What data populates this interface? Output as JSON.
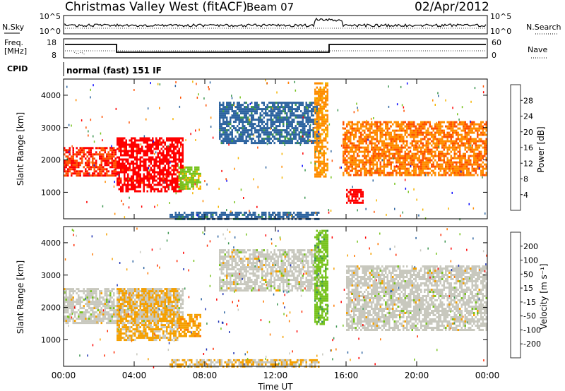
{
  "header": {
    "title": "Christmas Valley West (fitACF)",
    "beam": "Beam 07",
    "date": "02/Apr/2012"
  },
  "upper_panels": {
    "nsky_label": "N.Sky",
    "nsky_ticks": [
      "10^5",
      "10^0"
    ],
    "nsearch_label": "N.Search",
    "nsearch_ticks": [
      "10^5",
      "10^0"
    ],
    "freq_label_line1": "Freq.",
    "freq_label_line2": "[MHz]",
    "freq_ticks": [
      "18",
      "8"
    ],
    "nave_label": "Nave",
    "nave_ticks": [
      "60",
      "0"
    ],
    "cpid_label": "CPID",
    "cpid_value": "normal (fast) 151 IF"
  },
  "power_panel": {
    "ylabel": "Slant Range [km]",
    "yticks": [
      "4000",
      "3000",
      "2000",
      "1000"
    ],
    "colorbar_label": "Power [dB]",
    "colorbar_ticks": [
      "28",
      "24",
      "20",
      "16",
      "12",
      "8",
      "4"
    ],
    "colorbar_colors": [
      "#ff0000",
      "#ff5000",
      "#ff8c00",
      "#f5b400",
      "#78c31e",
      "#3c9650",
      "#2d64a0",
      "#0a0aff"
    ]
  },
  "velocity_panel": {
    "ylabel": "Slant Range [km]",
    "yticks": [
      "4000",
      "3000",
      "2000",
      "1000"
    ],
    "colorbar_label": "Velocity [m s⁻¹]",
    "colorbar_ticks": [
      "200",
      "100",
      "50",
      "15",
      "-15",
      "-50",
      "-100",
      "-200"
    ],
    "colorbar_colors": [
      "#1e32b4",
      "#2d64a0",
      "#3c9650",
      "#78c31e",
      "#c8c8be",
      "#f5a000",
      "#ff7800",
      "#ff2800",
      "#ff0000"
    ]
  },
  "xaxis": {
    "label": "Time UT",
    "ticks": [
      "00:00",
      "04:00",
      "08:00",
      "12:00",
      "16:00",
      "20:00",
      "00:00"
    ]
  },
  "chart_data": [
    {
      "type": "heatmap",
      "title": "Power",
      "xlabel": "Time UT",
      "ylabel": "Slant Range [km]",
      "xlim": [
        0,
        24
      ],
      "ylim": [
        180,
        4500
      ],
      "colorbar": "Power [dB]",
      "clim": [
        0,
        30
      ],
      "regions": [
        {
          "t0": 0.0,
          "t1": 3.0,
          "r0": 1500,
          "r1": 2400,
          "value": 26
        },
        {
          "t0": 3.0,
          "t1": 6.8,
          "r0": 1000,
          "r1": 2700,
          "value": 28
        },
        {
          "t0": 6.5,
          "t1": 7.8,
          "r0": 1100,
          "r1": 1800,
          "value": 14
        },
        {
          "t0": 8.8,
          "t1": 14.5,
          "r0": 2500,
          "r1": 3800,
          "value": 6
        },
        {
          "t0": 14.2,
          "t1": 15.0,
          "r0": 1500,
          "r1": 4400,
          "value": 20
        },
        {
          "t0": 15.8,
          "t1": 24.0,
          "r0": 1500,
          "r1": 3200,
          "value": 22
        },
        {
          "t0": 16.0,
          "t1": 17.0,
          "r0": 700,
          "r1": 1100,
          "value": 28
        },
        {
          "t0": 6.0,
          "t1": 14.5,
          "r0": 200,
          "r1": 400,
          "value": 6
        }
      ]
    },
    {
      "type": "heatmap",
      "title": "Velocity",
      "xlabel": "Time UT",
      "ylabel": "Slant Range [km]",
      "xlim": [
        0,
        24
      ],
      "ylim": [
        180,
        4500
      ],
      "colorbar": "Velocity [m s⁻¹]",
      "clim": [
        -250,
        250
      ],
      "regions": [
        {
          "t0": 0.0,
          "t1": 6.8,
          "r0": 1500,
          "r1": 2600,
          "value": 0
        },
        {
          "t0": 3.0,
          "t1": 6.5,
          "r0": 1000,
          "r1": 2600,
          "value": -40
        },
        {
          "t0": 6.5,
          "t1": 7.8,
          "r0": 1100,
          "r1": 1800,
          "value": -60
        },
        {
          "t0": 8.8,
          "t1": 14.5,
          "r0": 2500,
          "r1": 3800,
          "value": 0
        },
        {
          "t0": 14.2,
          "t1": 15.0,
          "r0": 1500,
          "r1": 4400,
          "value": 60
        },
        {
          "t0": 16.0,
          "t1": 24.0,
          "r0": 1300,
          "r1": 3300,
          "value": 0
        },
        {
          "t0": 6.0,
          "t1": 14.5,
          "r0": 200,
          "r1": 400,
          "value": -30
        }
      ]
    }
  ]
}
